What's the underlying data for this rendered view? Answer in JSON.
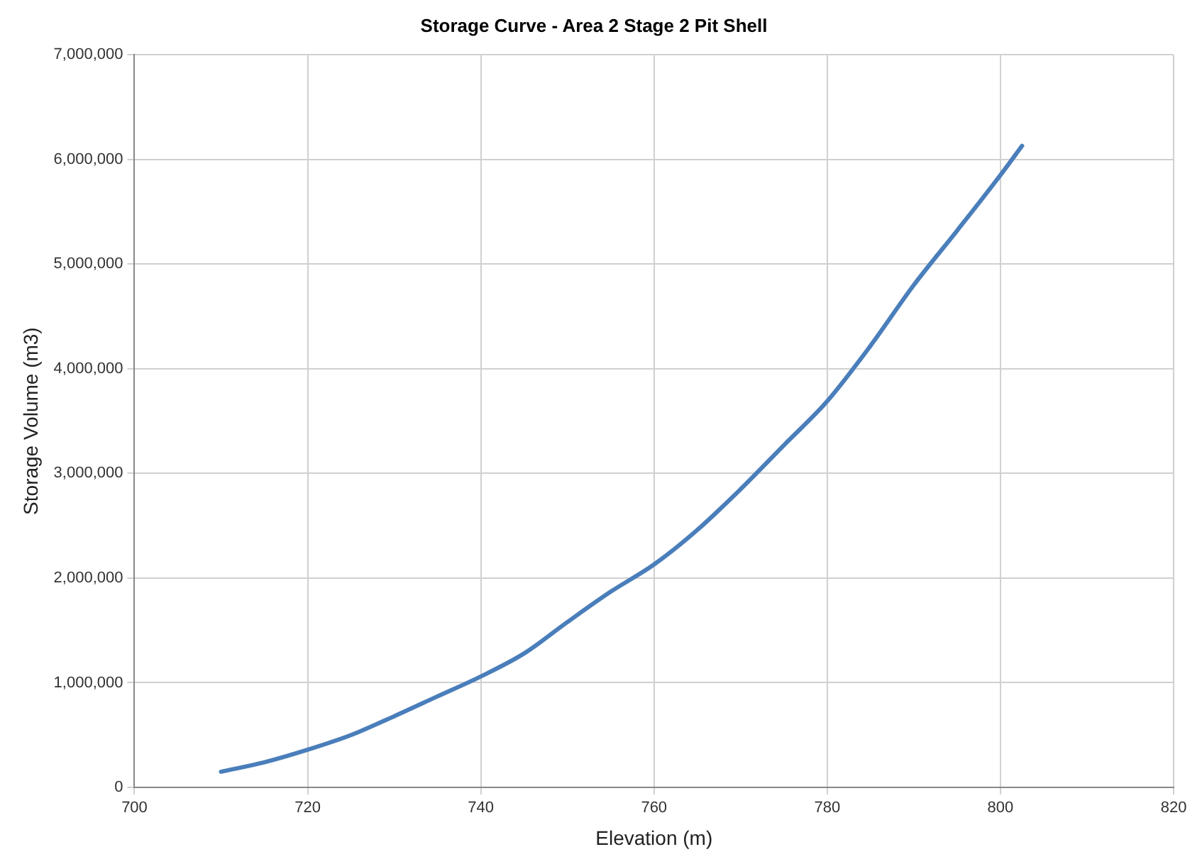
{
  "chart_data": {
    "type": "line",
    "title": "Storage Curve - Area 2 Stage 2 Pit Shell",
    "xlabel": "Elevation (m)",
    "ylabel": "Storage Volume (m3)",
    "x": [
      710,
      715,
      720,
      725,
      730,
      735,
      740,
      745,
      750,
      755,
      760,
      765,
      770,
      775,
      780,
      785,
      790,
      795,
      800,
      802.5
    ],
    "series": [
      {
        "color": "#4a7ebb",
        "values": [
          150000,
          240000,
          360000,
          500000,
          680000,
          870000,
          1060000,
          1280000,
          1580000,
          1870000,
          2130000,
          2460000,
          2850000,
          3270000,
          3690000,
          4220000,
          4800000,
          5320000,
          5850000,
          6130000
        ]
      }
    ],
    "xlim": [
      700,
      820
    ],
    "xticks": [
      700,
      720,
      740,
      760,
      780,
      800,
      820
    ],
    "ylim": [
      0,
      7000000
    ],
    "yticks": [
      {
        "value": 0,
        "label": "0"
      },
      {
        "value": 1000000,
        "label": "1,000,000"
      },
      {
        "value": 2000000,
        "label": "2,000,000"
      },
      {
        "value": 3000000,
        "label": "3,000,000"
      },
      {
        "value": 4000000,
        "label": "4,000,000"
      },
      {
        "value": 5000000,
        "label": "5,000,000"
      },
      {
        "value": 6000000,
        "label": "6,000,000"
      },
      {
        "value": 7000000,
        "label": "7,000,000"
      }
    ],
    "grid": true,
    "legend": false,
    "marker": "none",
    "line_style": "solid"
  }
}
